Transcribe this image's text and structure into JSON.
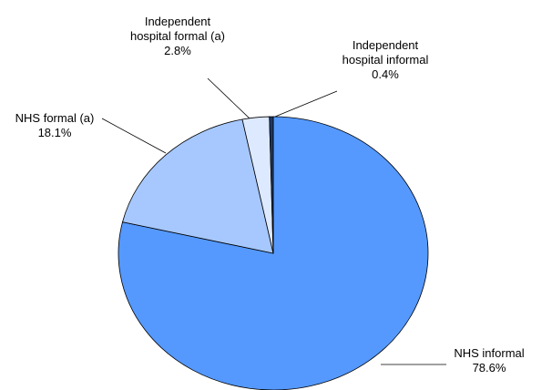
{
  "chart_data": {
    "type": "pie",
    "categories": [
      "NHS informal",
      "NHS formal (a)",
      "Independent hospital formal (a)",
      "Independent hospital informal"
    ],
    "values": [
      78.6,
      18.1,
      2.8,
      0.4
    ],
    "value_labels": [
      "78.6%",
      "18.1%",
      "2.8%",
      "0.4%"
    ],
    "colors": [
      "#5599ff",
      "#a6c8ff",
      "#dde9ff",
      "#1f3864"
    ]
  }
}
